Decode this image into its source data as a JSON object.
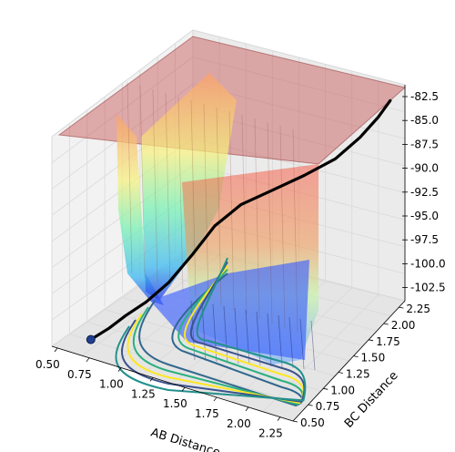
{
  "chart_data": {
    "type": "surface3d",
    "title": "",
    "xlabel": "AB Distance",
    "ylabel": "BC Distance",
    "zlabel": "",
    "x_ticks": [
      "0.50",
      "0.75",
      "1.00",
      "1.25",
      "1.50",
      "1.75",
      "2.00",
      "2.25"
    ],
    "y_ticks": [
      "0.50",
      "0.75",
      "1.00",
      "1.25",
      "1.50",
      "1.75",
      "2.00",
      "2.25"
    ],
    "z_ticks": [
      "-82.5",
      "-85.0",
      "-87.5",
      "-90.0",
      "-92.5",
      "-95.0",
      "-97.5",
      "-100.0",
      "-102.5"
    ],
    "xlim": [
      0.5,
      2.4
    ],
    "ylim": [
      0.5,
      2.4
    ],
    "zlim": [
      -104,
      -81
    ],
    "grid": true,
    "surface_colormap": [
      "#30123b",
      "#3d5cf5",
      "#25c0e7",
      "#59f16b",
      "#d2e935",
      "#fb8d2a",
      "#d93806",
      "#7a0403"
    ],
    "contour_colors": [
      "#31688e",
      "#2ab07f",
      "#fde725",
      "#3b528b",
      "#21918c"
    ],
    "trajectory": {
      "color": "#000000",
      "start_marker_color": "#1f3f8f",
      "start": {
        "ab": 0.75,
        "bc": 2.3,
        "energy": -102.8
      },
      "points": [
        [
          0.75,
          2.3,
          -102.8
        ],
        [
          0.78,
          2.1,
          -102.6
        ],
        [
          0.8,
          1.9,
          -102.3
        ],
        [
          0.85,
          1.7,
          -101.8
        ],
        [
          0.92,
          1.5,
          -100.6
        ],
        [
          1.0,
          1.3,
          -98.5
        ],
        [
          1.1,
          1.15,
          -96.0
        ],
        [
          1.25,
          1.02,
          -94.0
        ],
        [
          1.45,
          0.92,
          -92.5
        ],
        [
          1.7,
          0.85,
          -90.5
        ],
        [
          1.95,
          0.81,
          -88.2
        ],
        [
          2.15,
          0.78,
          -85.5
        ],
        [
          2.3,
          0.76,
          -83.0
        ],
        [
          2.4,
          0.75,
          -81.0
        ]
      ]
    }
  }
}
